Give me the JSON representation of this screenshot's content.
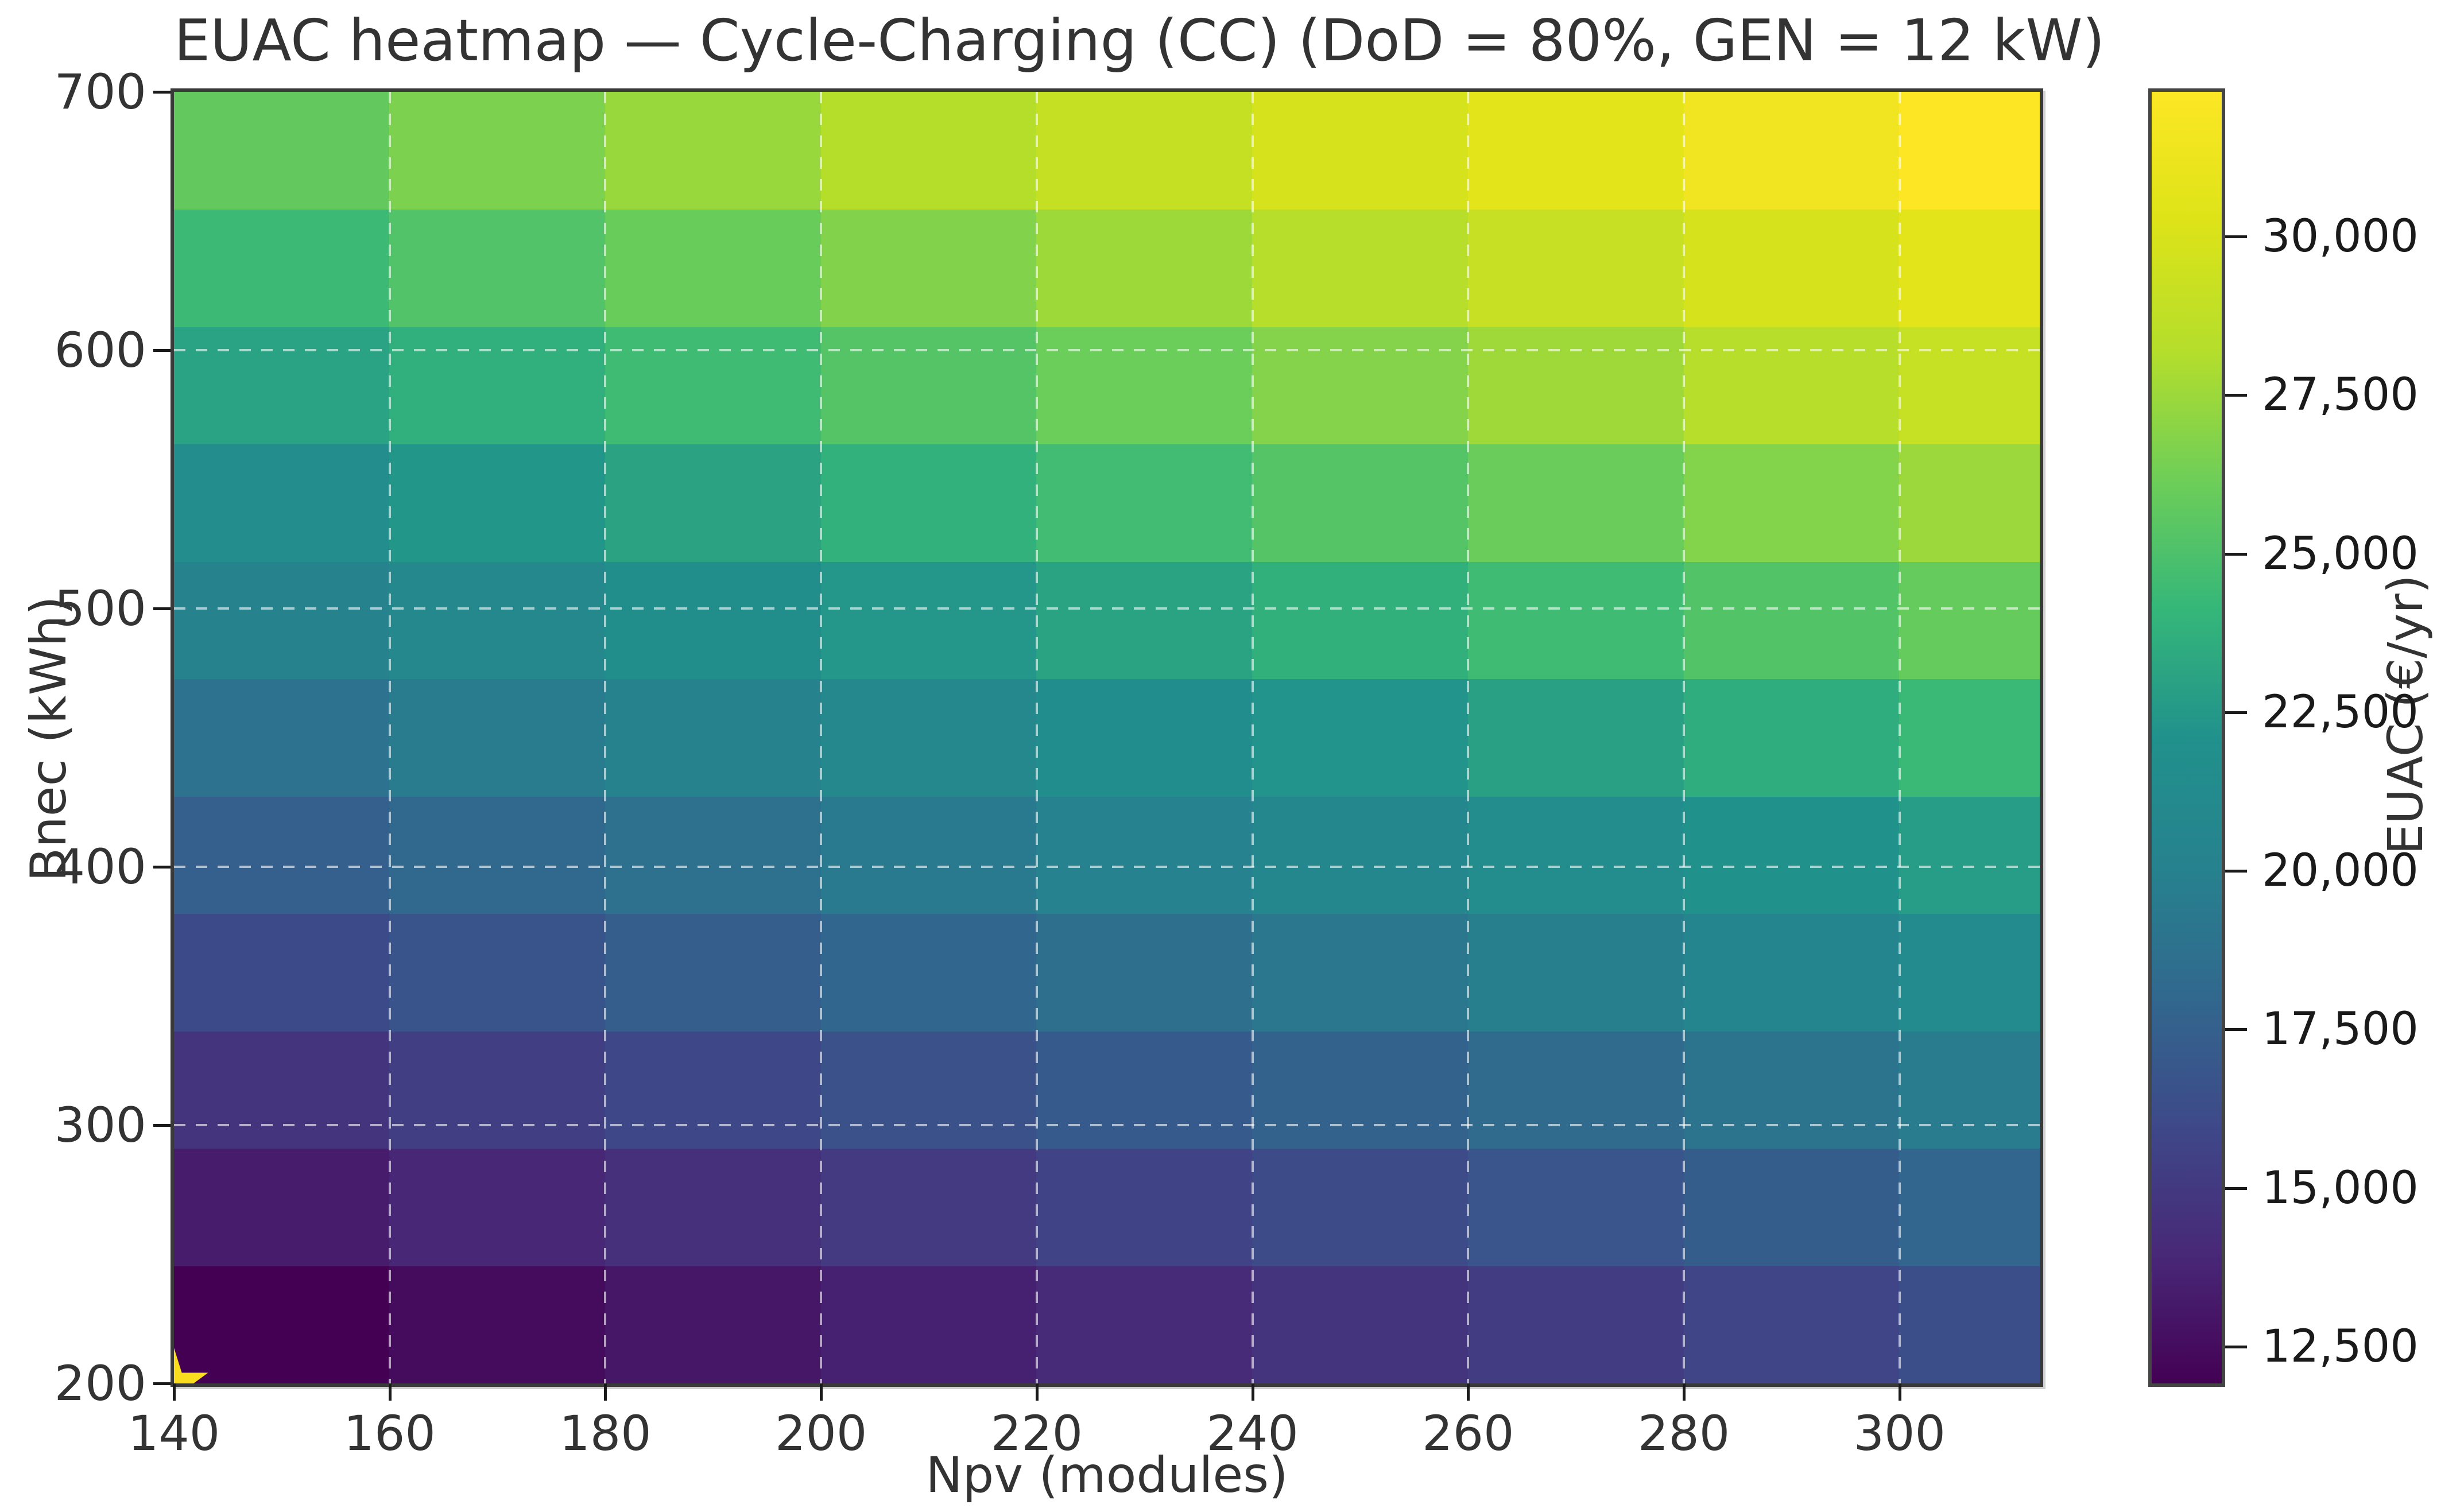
{
  "chart_data": {
    "type": "heatmap",
    "title": "EUAC heatmap — Cycle-Charging (CC) (DoD = 80%, GEN = 12 kW)",
    "xlabel": "Npv (modules)",
    "ylabel": "Bnec (kWh)",
    "colorbar_label": "EUAC (€/yr)",
    "colormap": "viridis",
    "colormap_stops": [
      "#440154",
      "#482878",
      "#3e4989",
      "#31688e",
      "#26828e",
      "#21918c",
      "#35b779",
      "#6ece58",
      "#b5de2b",
      "#dde318",
      "#fde725"
    ],
    "xlim": [
      140,
      313
    ],
    "ylim": [
      200,
      700
    ],
    "x_ticks": [
      140,
      160,
      180,
      200,
      220,
      240,
      260,
      280,
      300
    ],
    "y_ticks": [
      200,
      300,
      400,
      500,
      600,
      700
    ],
    "x_edges": [
      140,
      160,
      180,
      200,
      220,
      240,
      260,
      280,
      300,
      313
    ],
    "y_edges": [
      200,
      245.5,
      290.9,
      336.4,
      381.8,
      427.3,
      472.7,
      518.2,
      563.6,
      609.1,
      654.5,
      700
    ],
    "vmin": 11920,
    "vmax": 32280,
    "colorbar_ticks": [
      {
        "value": 12500,
        "label": "12,500"
      },
      {
        "value": 15000,
        "label": "15,000"
      },
      {
        "value": 17500,
        "label": "17,500"
      },
      {
        "value": 20000,
        "label": "20,000"
      },
      {
        "value": 22500,
        "label": "22,500"
      },
      {
        "value": 25000,
        "label": "25,000"
      },
      {
        "value": 27500,
        "label": "27,500"
      },
      {
        "value": 30000,
        "label": "30,000"
      }
    ],
    "values_note": "values[j][i]: j indexes y_edges bottom-to-top, i indexes x_edges left-to-right; EUAC in €/yr (estimated from colors)",
    "values": [
      [
        11930,
        12480,
        13020,
        13570,
        14120,
        14670,
        15210,
        15760,
        16310
      ],
      [
        13310,
        13890,
        14460,
        15040,
        15610,
        16180,
        16760,
        17330,
        17900
      ],
      [
        14700,
        15300,
        15900,
        16500,
        17100,
        17700,
        18300,
        18900,
        19500
      ],
      [
        16080,
        16710,
        17340,
        17960,
        18590,
        19220,
        19850,
        20470,
        21100
      ],
      [
        17470,
        18120,
        18770,
        19430,
        20080,
        20740,
        21390,
        22040,
        22700
      ],
      [
        18850,
        19530,
        20210,
        20890,
        21570,
        22250,
        22930,
        23610,
        24300
      ],
      [
        20230,
        20940,
        21650,
        22360,
        23060,
        23770,
        24480,
        25190,
        25890
      ],
      [
        21620,
        22350,
        23090,
        23820,
        24550,
        25290,
        26020,
        26760,
        27490
      ],
      [
        23000,
        23760,
        24520,
        25280,
        26050,
        26810,
        27570,
        28330,
        29090
      ],
      [
        24390,
        25170,
        25960,
        26750,
        27540,
        28320,
        29110,
        29900,
        30690
      ],
      [
        25770,
        26580,
        27400,
        28210,
        29030,
        29840,
        30660,
        31470,
        32280
      ]
    ],
    "optimum_marker": {
      "x": 140,
      "y": 200,
      "shape": "star",
      "color": "#f9dc1e"
    },
    "grid": {
      "style": "dashed",
      "color": "rgba(255,255,255,0.6)"
    },
    "background_color": "#ffffff",
    "text_color": "#333333"
  }
}
